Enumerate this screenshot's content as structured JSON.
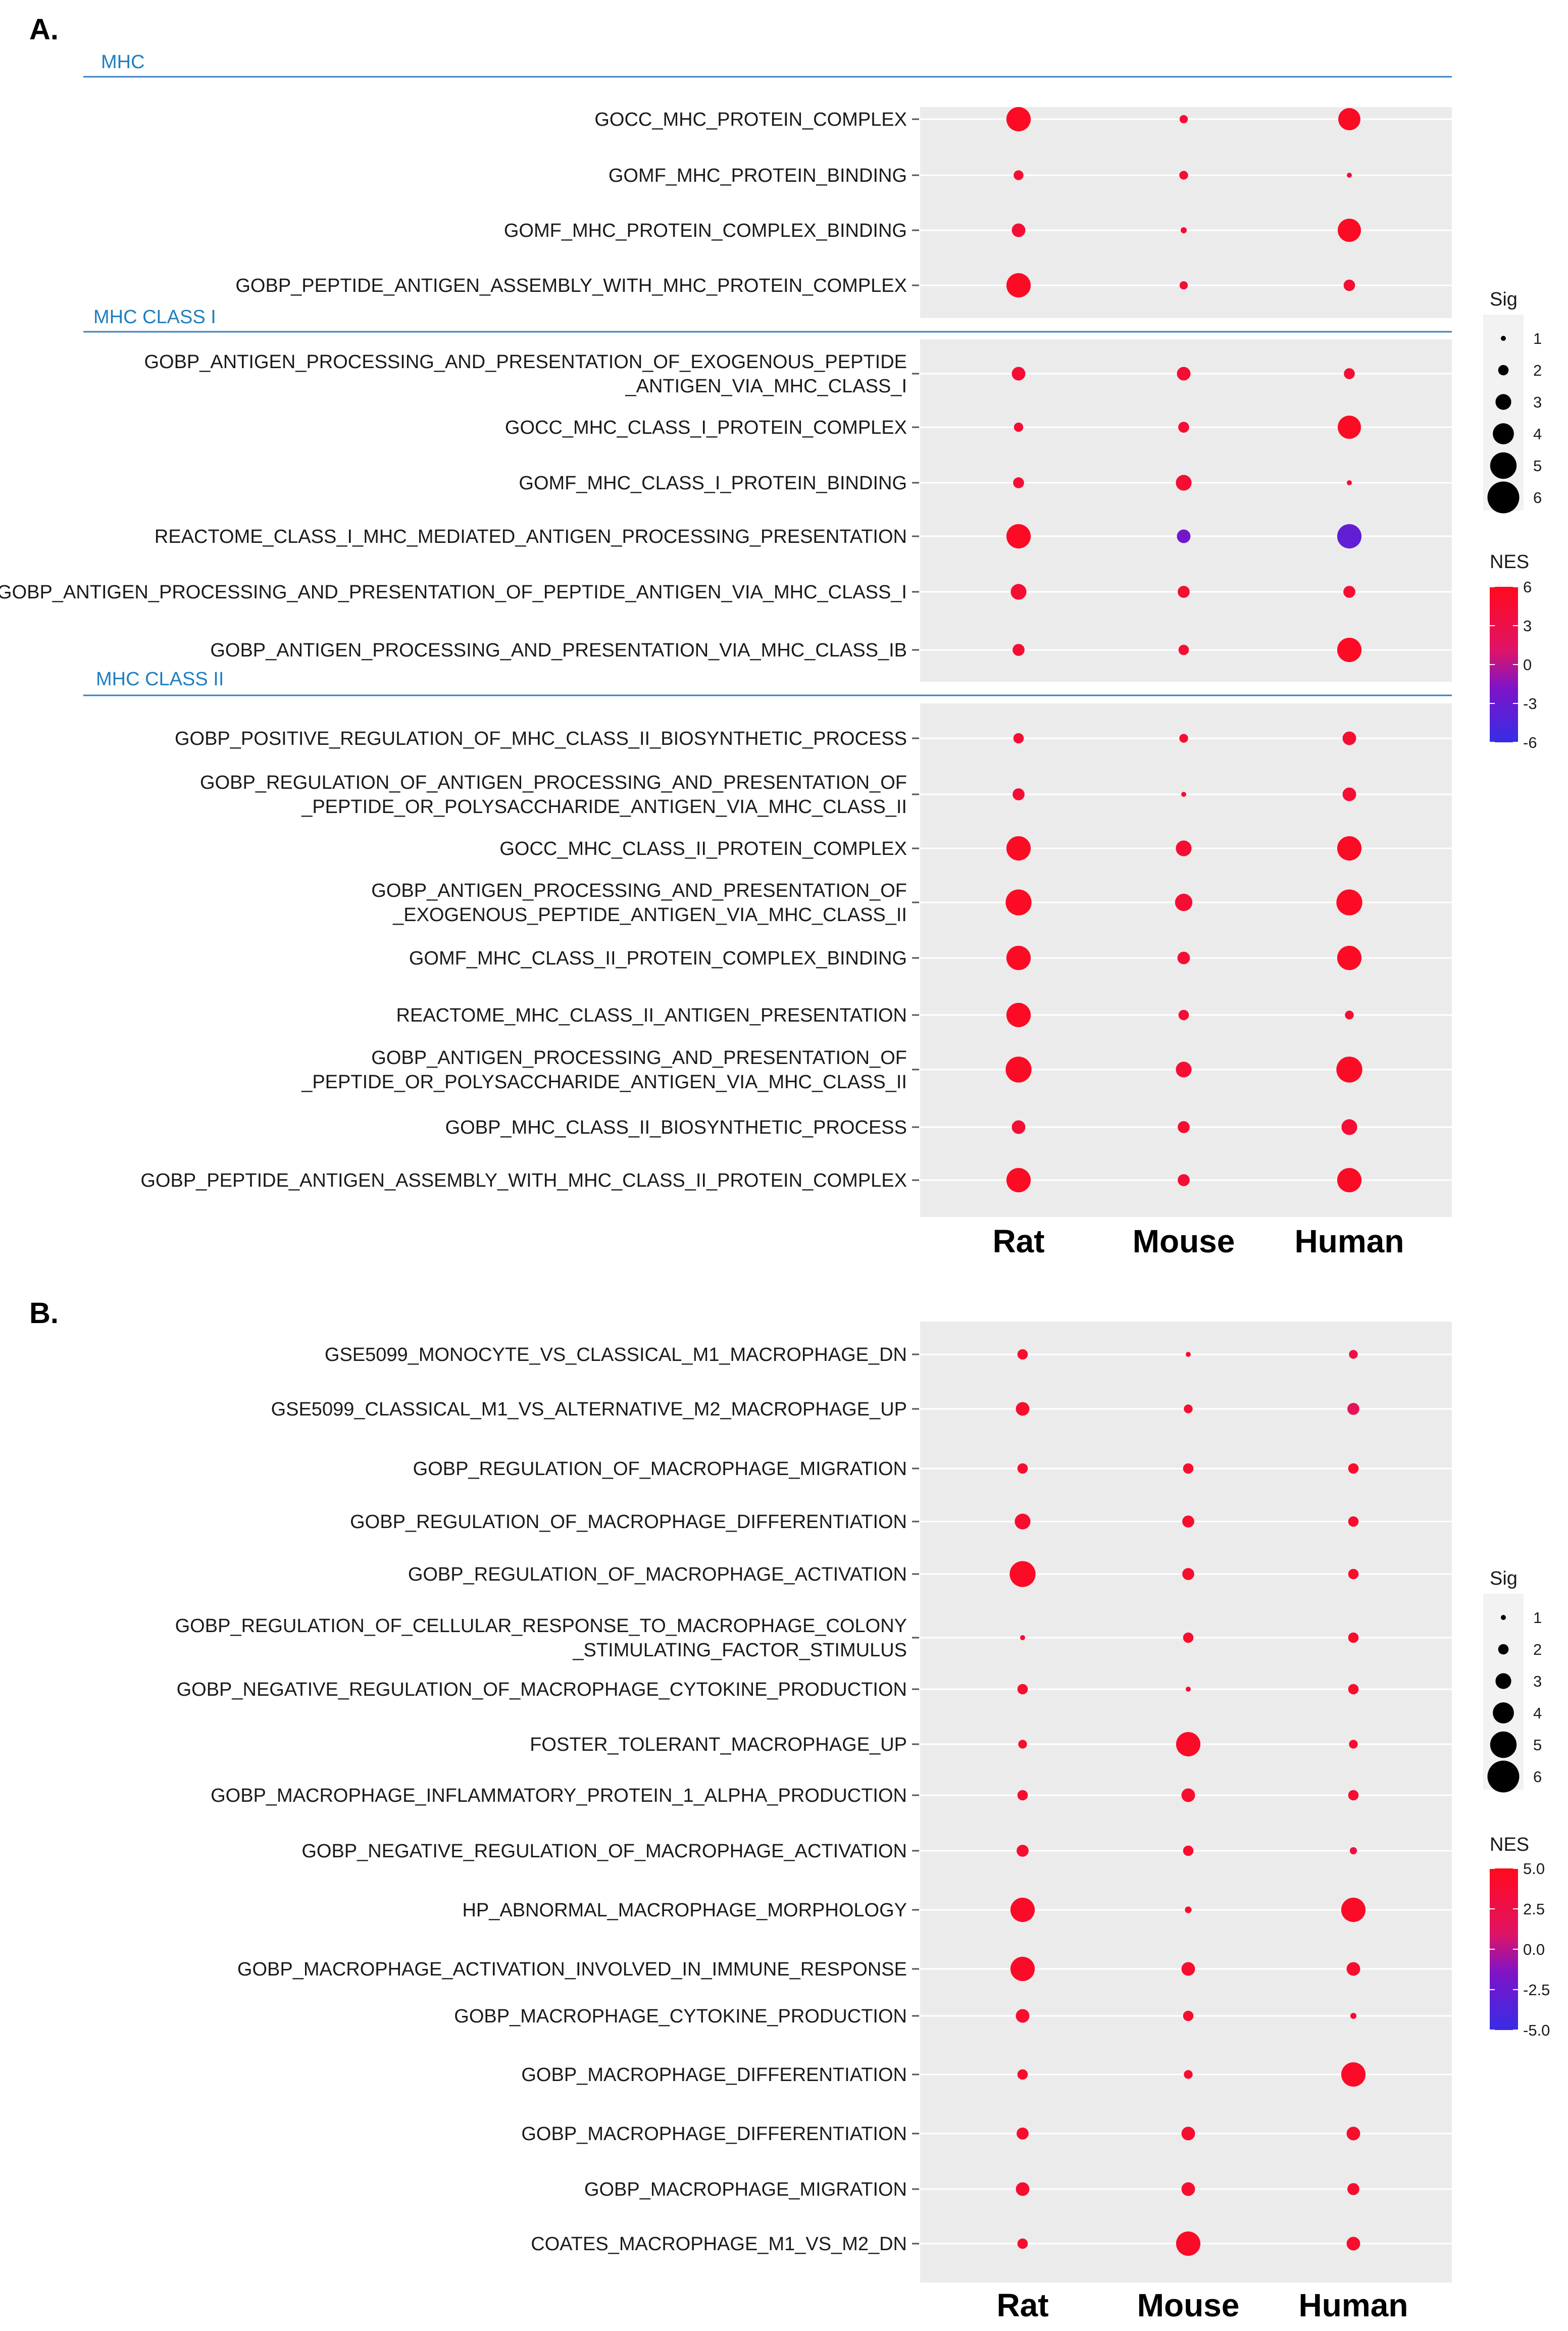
{
  "chart_data": [
    {
      "type": "scatter",
      "panel": "A.",
      "title": "",
      "x_categories": [
        "Rat",
        "Mouse",
        "Human"
      ],
      "size_legend": {
        "title": "Sig",
        "ticks": [
          1,
          2,
          3,
          4,
          5,
          6
        ]
      },
      "color_legend": {
        "title": "NES",
        "range": [
          -6,
          6
        ],
        "ticks": [
          6,
          3,
          0,
          -3,
          -6
        ],
        "tick_labels": [
          "6",
          "3",
          "0",
          "-3",
          "-6"
        ]
      },
      "groups": [
        {
          "name": "MHC",
          "rows": [
            {
              "label": [
                "GOCC_MHC_PROTEIN_COMPLEX"
              ],
              "sig": [
                4.6,
                1.6,
                4.2
              ],
              "nes": [
                5.5,
                4.5,
                5.5
              ]
            },
            {
              "label": [
                "GOMF_MHC_PROTEIN_BINDING"
              ],
              "sig": [
                1.9,
                1.7,
                1.0
              ],
              "nes": [
                4.5,
                4.5,
                4.5
              ]
            },
            {
              "label": [
                "GOMF_MHC_PROTEIN_COMPLEX_BINDING"
              ],
              "sig": [
                2.6,
                1.2,
                4.4
              ],
              "nes": [
                4.5,
                4.5,
                5.5
              ]
            },
            {
              "label": [
                "GOBP_PEPTIDE_ANTIGEN_ASSEMBLY_WITH_MHC_PROTEIN_COMPLEX"
              ],
              "sig": [
                4.6,
                1.6,
                2.2
              ],
              "nes": [
                5.5,
                4.5,
                4.5
              ]
            }
          ]
        },
        {
          "name": "MHC CLASS I",
          "rows": [
            {
              "label": [
                "GOBP_ANTIGEN_PROCESSING_AND_PRESENTATION_OF_EXOGENOUS_PEPTIDE",
                "_ANTIGEN_VIA_MHC_CLASS_I"
              ],
              "sig": [
                2.6,
                2.6,
                2.1
              ],
              "nes": [
                4.5,
                4.5,
                4.5
              ]
            },
            {
              "label": [
                "GOCC_MHC_CLASS_I_PROTEIN_COMPLEX"
              ],
              "sig": [
                1.8,
                2.1,
                4.4
              ],
              "nes": [
                4.5,
                4.5,
                5.5
              ]
            },
            {
              "label": [
                "GOMF_MHC_CLASS_I_PROTEIN_BINDING"
              ],
              "sig": [
                2.1,
                3.0,
                1.0
              ],
              "nes": [
                4.5,
                4.5,
                4.5
              ]
            },
            {
              "label": [
                "REACTOME_CLASS_I_MHC_MEDIATED_ANTIGEN_PROCESSING_PRESENTATION"
              ],
              "sig": [
                4.6,
                2.6,
                4.6
              ],
              "nes": [
                5.5,
                -2.5,
                -3.5
              ]
            },
            {
              "label": [
                "GOBP_ANTIGEN_PROCESSING_AND_PRESENTATION_OF_PEPTIDE_ANTIGEN_VIA_MHC_CLASS_I"
              ],
              "sig": [
                3.0,
                2.3,
                2.3
              ],
              "nes": [
                4.5,
                4.5,
                4.5
              ]
            },
            {
              "label": [
                "GOBP_ANTIGEN_PROCESSING_AND_PRESENTATION_VIA_MHC_CLASS_IB"
              ],
              "sig": [
                2.3,
                2.0,
                4.6
              ],
              "nes": [
                4.5,
                4.5,
                5.5
              ]
            }
          ]
        },
        {
          "name": "MHC CLASS II",
          "rows": [
            {
              "label": [
                "GOBP_POSITIVE_REGULATION_OF_MHC_CLASS_II_BIOSYNTHETIC_PROCESS"
              ],
              "sig": [
                2.0,
                1.7,
                2.6
              ],
              "nes": [
                4.5,
                4.5,
                4.5
              ]
            },
            {
              "label": [
                "GOBP_REGULATION_OF_ANTIGEN_PROCESSING_AND_PRESENTATION_OF",
                "_PEPTIDE_OR_POLYSACCHARIDE_ANTIGEN_VIA_MHC_CLASS_II"
              ],
              "sig": [
                2.3,
                1.0,
                2.6
              ],
              "nes": [
                4.5,
                4.5,
                4.5
              ]
            },
            {
              "label": [
                "GOCC_MHC_CLASS_II_PROTEIN_COMPLEX"
              ],
              "sig": [
                4.6,
                3.0,
                4.6
              ],
              "nes": [
                5.5,
                4.5,
                5.5
              ]
            },
            {
              "label": [
                "GOBP_ANTIGEN_PROCESSING_AND_PRESENTATION_OF",
                "_EXOGENOUS_PEPTIDE_ANTIGEN_VIA_MHC_CLASS_II"
              ],
              "sig": [
                4.9,
                3.3,
                4.9
              ],
              "nes": [
                5.5,
                4.5,
                5.5
              ]
            },
            {
              "label": [
                "GOMF_MHC_CLASS_II_PROTEIN_COMPLEX_BINDING"
              ],
              "sig": [
                4.6,
                2.4,
                4.6
              ],
              "nes": [
                5.5,
                4.5,
                5.5
              ]
            },
            {
              "label": [
                "REACTOME_MHC_CLASS_II_ANTIGEN_PRESENTATION"
              ],
              "sig": [
                4.6,
                2.0,
                1.7
              ],
              "nes": [
                5.5,
                4.5,
                4.5
              ]
            },
            {
              "label": [
                "GOBP_ANTIGEN_PROCESSING_AND_PRESENTATION_OF",
                "_PEPTIDE_OR_POLYSACCHARIDE_ANTIGEN_VIA_MHC_CLASS_II"
              ],
              "sig": [
                4.9,
                3.0,
                4.9
              ],
              "nes": [
                5.5,
                4.5,
                5.5
              ]
            },
            {
              "label": [
                "GOBP_MHC_CLASS_II_BIOSYNTHETIC_PROCESS"
              ],
              "sig": [
                2.6,
                2.3,
                3.0
              ],
              "nes": [
                4.5,
                4.5,
                4.5
              ]
            },
            {
              "label": [
                "GOBP_PEPTIDE_ANTIGEN_ASSEMBLY_WITH_MHC_CLASS_II_PROTEIN_COMPLEX"
              ],
              "sig": [
                4.6,
                2.3,
                4.6
              ],
              "nes": [
                5.5,
                4.5,
                5.5
              ]
            }
          ]
        }
      ]
    },
    {
      "type": "scatter",
      "panel": "B.",
      "title": "",
      "x_categories": [
        "Rat",
        "Mouse",
        "Human"
      ],
      "size_legend": {
        "title": "Sig",
        "ticks": [
          1,
          2,
          3,
          4,
          5,
          6
        ]
      },
      "color_legend": {
        "title": "NES",
        "range": [
          -5,
          5
        ],
        "ticks": [
          5,
          2.5,
          0,
          -2.5,
          -5
        ],
        "tick_labels": [
          "5.0",
          "2.5",
          "0.0",
          "-2.5",
          "-5.0"
        ]
      },
      "groups": [
        {
          "name": "",
          "rows": [
            {
              "label": [
                "GSE5099_MONOCYTE_VS_CLASSICAL_M1_MACROPHAGE_DN"
              ],
              "sig": [
                2.0,
                1.0,
                1.7
              ],
              "nes": [
                4.0,
                4.0,
                3.0
              ]
            },
            {
              "label": [
                "GSE5099_CLASSICAL_M1_VS_ALTERNATIVE_M2_MACROPHAGE_UP"
              ],
              "sig": [
                2.6,
                1.7,
                2.3
              ],
              "nes": [
                4.0,
                4.0,
                1.5
              ]
            },
            {
              "label": [
                "GOBP_REGULATION_OF_MACROPHAGE_MIGRATION"
              ],
              "sig": [
                2.0,
                2.0,
                2.0
              ],
              "nes": [
                4.0,
                4.0,
                4.0
              ]
            },
            {
              "label": [
                "GOBP_REGULATION_OF_MACROPHAGE_DIFFERENTIATION"
              ],
              "sig": [
                3.0,
                2.3,
                2.0
              ],
              "nes": [
                4.0,
                4.0,
                4.0
              ]
            },
            {
              "label": [
                "GOBP_REGULATION_OF_MACROPHAGE_ACTIVATION"
              ],
              "sig": [
                4.9,
                2.3,
                2.0
              ],
              "nes": [
                4.5,
                4.0,
                4.0
              ]
            },
            {
              "label": [
                "GOBP_REGULATION_OF_CELLULAR_RESPONSE_TO_MACROPHAGE_COLONY",
                "_STIMULATING_FACTOR_STIMULUS"
              ],
              "sig": [
                1.0,
                2.0,
                2.0
              ],
              "nes": [
                4.0,
                4.0,
                4.0
              ]
            },
            {
              "label": [
                "GOBP_NEGATIVE_REGULATION_OF_MACROPHAGE_CYTOKINE_PRODUCTION"
              ],
              "sig": [
                2.0,
                1.0,
                2.0
              ],
              "nes": [
                4.0,
                4.0,
                4.0
              ]
            },
            {
              "label": [
                "FOSTER_TOLERANT_MACROPHAGE_UP"
              ],
              "sig": [
                1.7,
                4.6,
                1.7
              ],
              "nes": [
                4.0,
                4.5,
                4.0
              ]
            },
            {
              "label": [
                "GOBP_MACROPHAGE_INFLAMMATORY_PROTEIN_1_ALPHA_PRODUCTION"
              ],
              "sig": [
                2.0,
                2.6,
                2.0
              ],
              "nes": [
                4.0,
                4.0,
                4.0
              ]
            },
            {
              "label": [
                "GOBP_NEGATIVE_REGULATION_OF_MACROPHAGE_ACTIVATION"
              ],
              "sig": [
                2.3,
                2.0,
                1.4
              ],
              "nes": [
                4.0,
                4.0,
                3.0
              ]
            },
            {
              "label": [
                "HP_ABNORMAL_MACROPHAGE_MORPHOLOGY"
              ],
              "sig": [
                4.6,
                1.3,
                4.6
              ],
              "nes": [
                4.5,
                4.0,
                4.5
              ]
            },
            {
              "label": [
                "GOBP_MACROPHAGE_ACTIVATION_INVOLVED_IN_IMMUNE_RESPONSE"
              ],
              "sig": [
                4.6,
                2.6,
                2.6
              ],
              "nes": [
                4.5,
                4.0,
                4.0
              ]
            },
            {
              "label": [
                "GOBP_MACROPHAGE_CYTOKINE_PRODUCTION"
              ],
              "sig": [
                2.6,
                2.0,
                1.2
              ],
              "nes": [
                4.0,
                4.0,
                4.0
              ]
            },
            {
              "label": [
                "GOBP_MACROPHAGE_DIFFERENTIATION"
              ],
              "sig": [
                2.0,
                1.7,
                4.6
              ],
              "nes": [
                4.0,
                4.0,
                4.5
              ]
            },
            {
              "label": [
                "GOBP_MACROPHAGE_DIFFERENTIATION"
              ],
              "sig": [
                2.3,
                2.6,
                2.6
              ],
              "nes": [
                4.0,
                4.0,
                4.0
              ]
            },
            {
              "label": [
                "GOBP_MACROPHAGE_MIGRATION"
              ],
              "sig": [
                2.6,
                2.6,
                2.3
              ],
              "nes": [
                4.0,
                4.0,
                4.0
              ]
            },
            {
              "label": [
                "COATES_MACROPHAGE_M1_VS_M2_DN"
              ],
              "sig": [
                2.0,
                4.6,
                2.6
              ],
              "nes": [
                4.0,
                4.5,
                4.0
              ]
            }
          ]
        }
      ]
    }
  ]
}
